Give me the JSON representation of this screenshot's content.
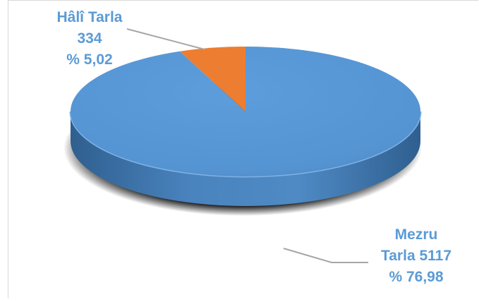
{
  "chart_data": {
    "type": "pie",
    "style": "3d",
    "slices": [
      {
        "name": "Mezru Tarla",
        "value": 5117,
        "percent": "% 76,98",
        "color": "#5b9bd5"
      },
      {
        "name": "Hâlî Tarla",
        "value": 334,
        "percent": "% 5,02",
        "color": "#ed7d31"
      }
    ],
    "labels": {
      "hali": {
        "line1": "Hâlî Tarla",
        "line2": "334",
        "line3": "% 5,02"
      },
      "mezru": {
        "line1": "Mezru",
        "line2": "Tarla 5117",
        "line3": "% 76,98"
      }
    },
    "title": "",
    "legend": "none"
  }
}
